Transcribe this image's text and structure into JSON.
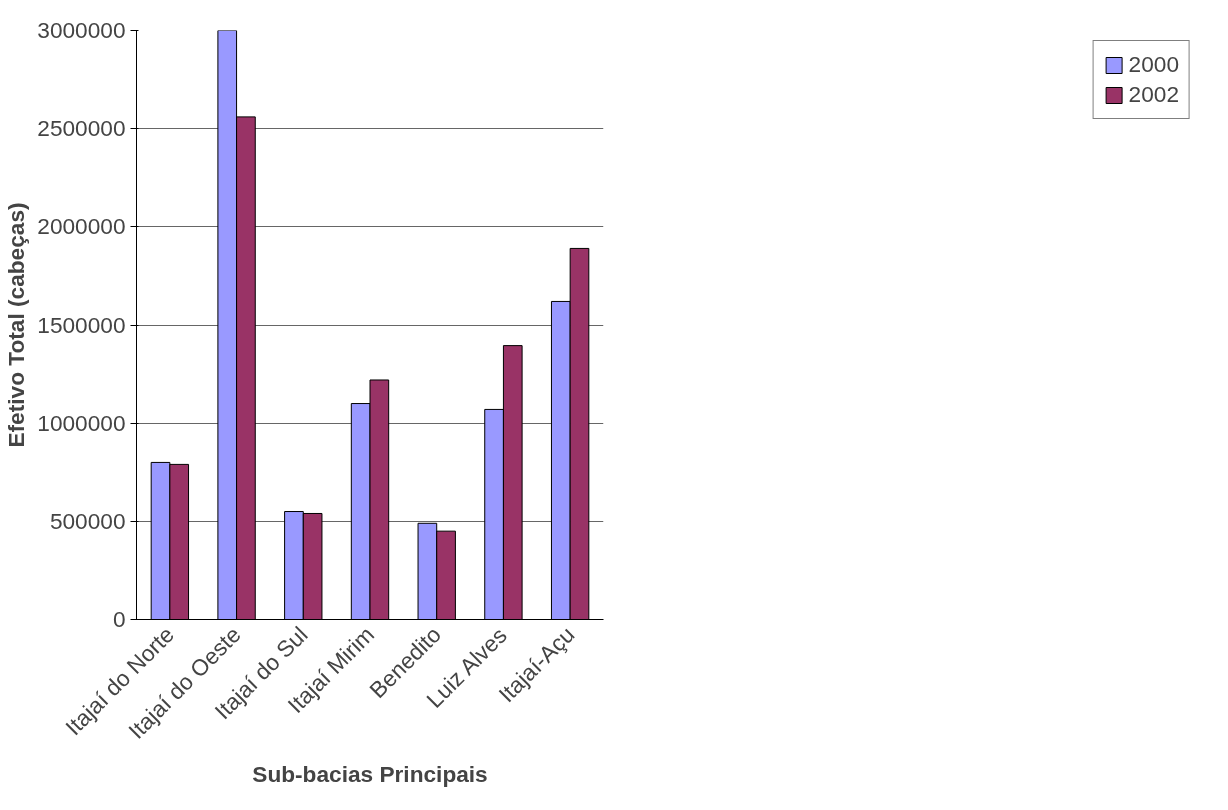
{
  "chart_data": {
    "type": "bar",
    "xlabel": "Sub-bacias Principais",
    "ylabel": "Efetivo Total (cabeças)",
    "categories": [
      "Itajaí do Norte",
      "Itajaí do Oeste",
      "Itajaí do Sul",
      "Itajaí Mirim",
      "Benedito",
      "Luiz Alves",
      "Itajaí-Açu"
    ],
    "series": [
      {
        "name": "2000",
        "color": "#9999ff",
        "values": [
          800000,
          3000000,
          550000,
          1100000,
          490000,
          1070000,
          1620000
        ]
      },
      {
        "name": "2002",
        "color": "#993366",
        "values": [
          790000,
          2560000,
          540000,
          1220000,
          450000,
          1395000,
          1890000
        ]
      }
    ],
    "ylim": [
      0,
      3000000
    ],
    "yticks": [
      0,
      500000,
      1000000,
      1500000,
      2000000,
      2500000,
      3000000
    ],
    "grid": "y",
    "legend": "right"
  }
}
